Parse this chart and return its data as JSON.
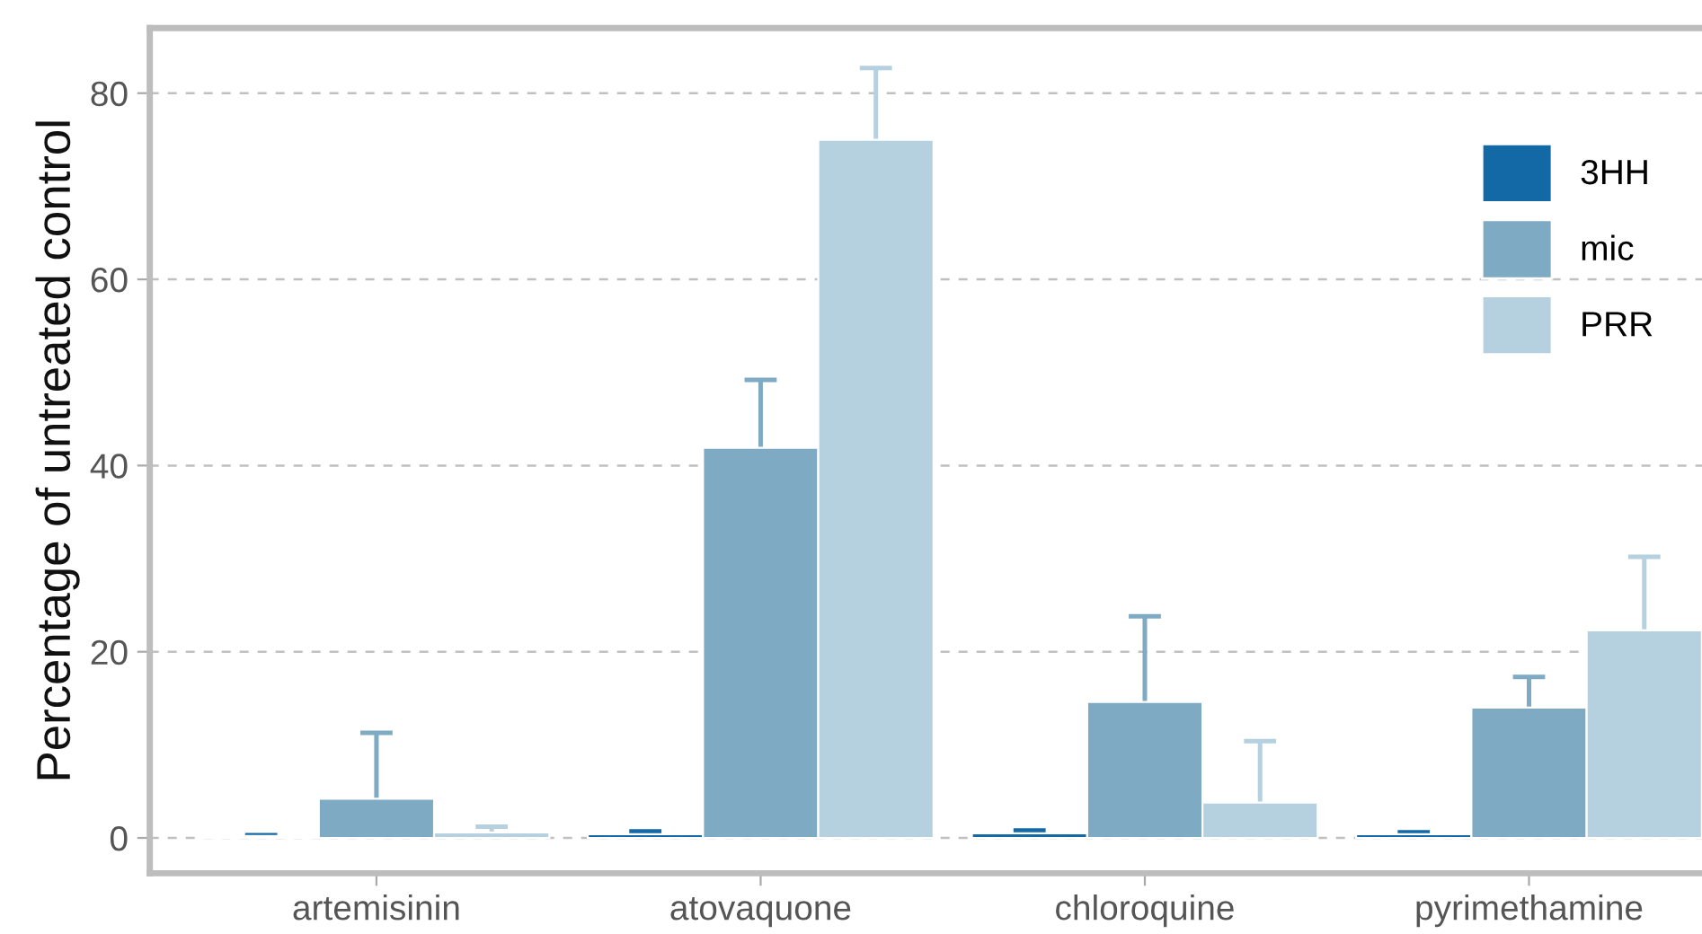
{
  "chart_data": {
    "type": "bar",
    "ylabel": "Percentage of untreated control",
    "categories": [
      "artemisinin",
      "atovaquone",
      "chloroquine",
      "pyrimethamine"
    ],
    "series": [
      {
        "name": "3HH",
        "color": "#1368a6",
        "values": [
          0.2,
          0.4,
          0.5,
          0.4
        ],
        "errors": [
          [
            0.2,
            0.3
          ],
          [
            0.4,
            0.7
          ],
          [
            0.5,
            0.8
          ],
          [
            0.4,
            0.6
          ]
        ]
      },
      {
        "name": "mic",
        "color": "#7eaac4",
        "values": [
          4.2,
          41.9,
          14.6,
          14.0
        ],
        "errors": [
          [
            4.2,
            11.3
          ],
          [
            41.9,
            49.2
          ],
          [
            14.6,
            23.8
          ],
          [
            14.0,
            17.3
          ]
        ]
      },
      {
        "name": "PRR",
        "color": "#b5d0de",
        "values": [
          0.6,
          75.0,
          3.8,
          22.3
        ],
        "errors": [
          [
            0.6,
            1.2
          ],
          [
            75.0,
            82.7
          ],
          [
            3.8,
            10.4
          ],
          [
            22.3,
            30.2
          ]
        ]
      }
    ],
    "ylim": [
      -3.8,
      87
    ],
    "yticks": [
      0,
      20,
      40,
      60,
      80
    ],
    "grid": "y",
    "legend": "top right"
  }
}
